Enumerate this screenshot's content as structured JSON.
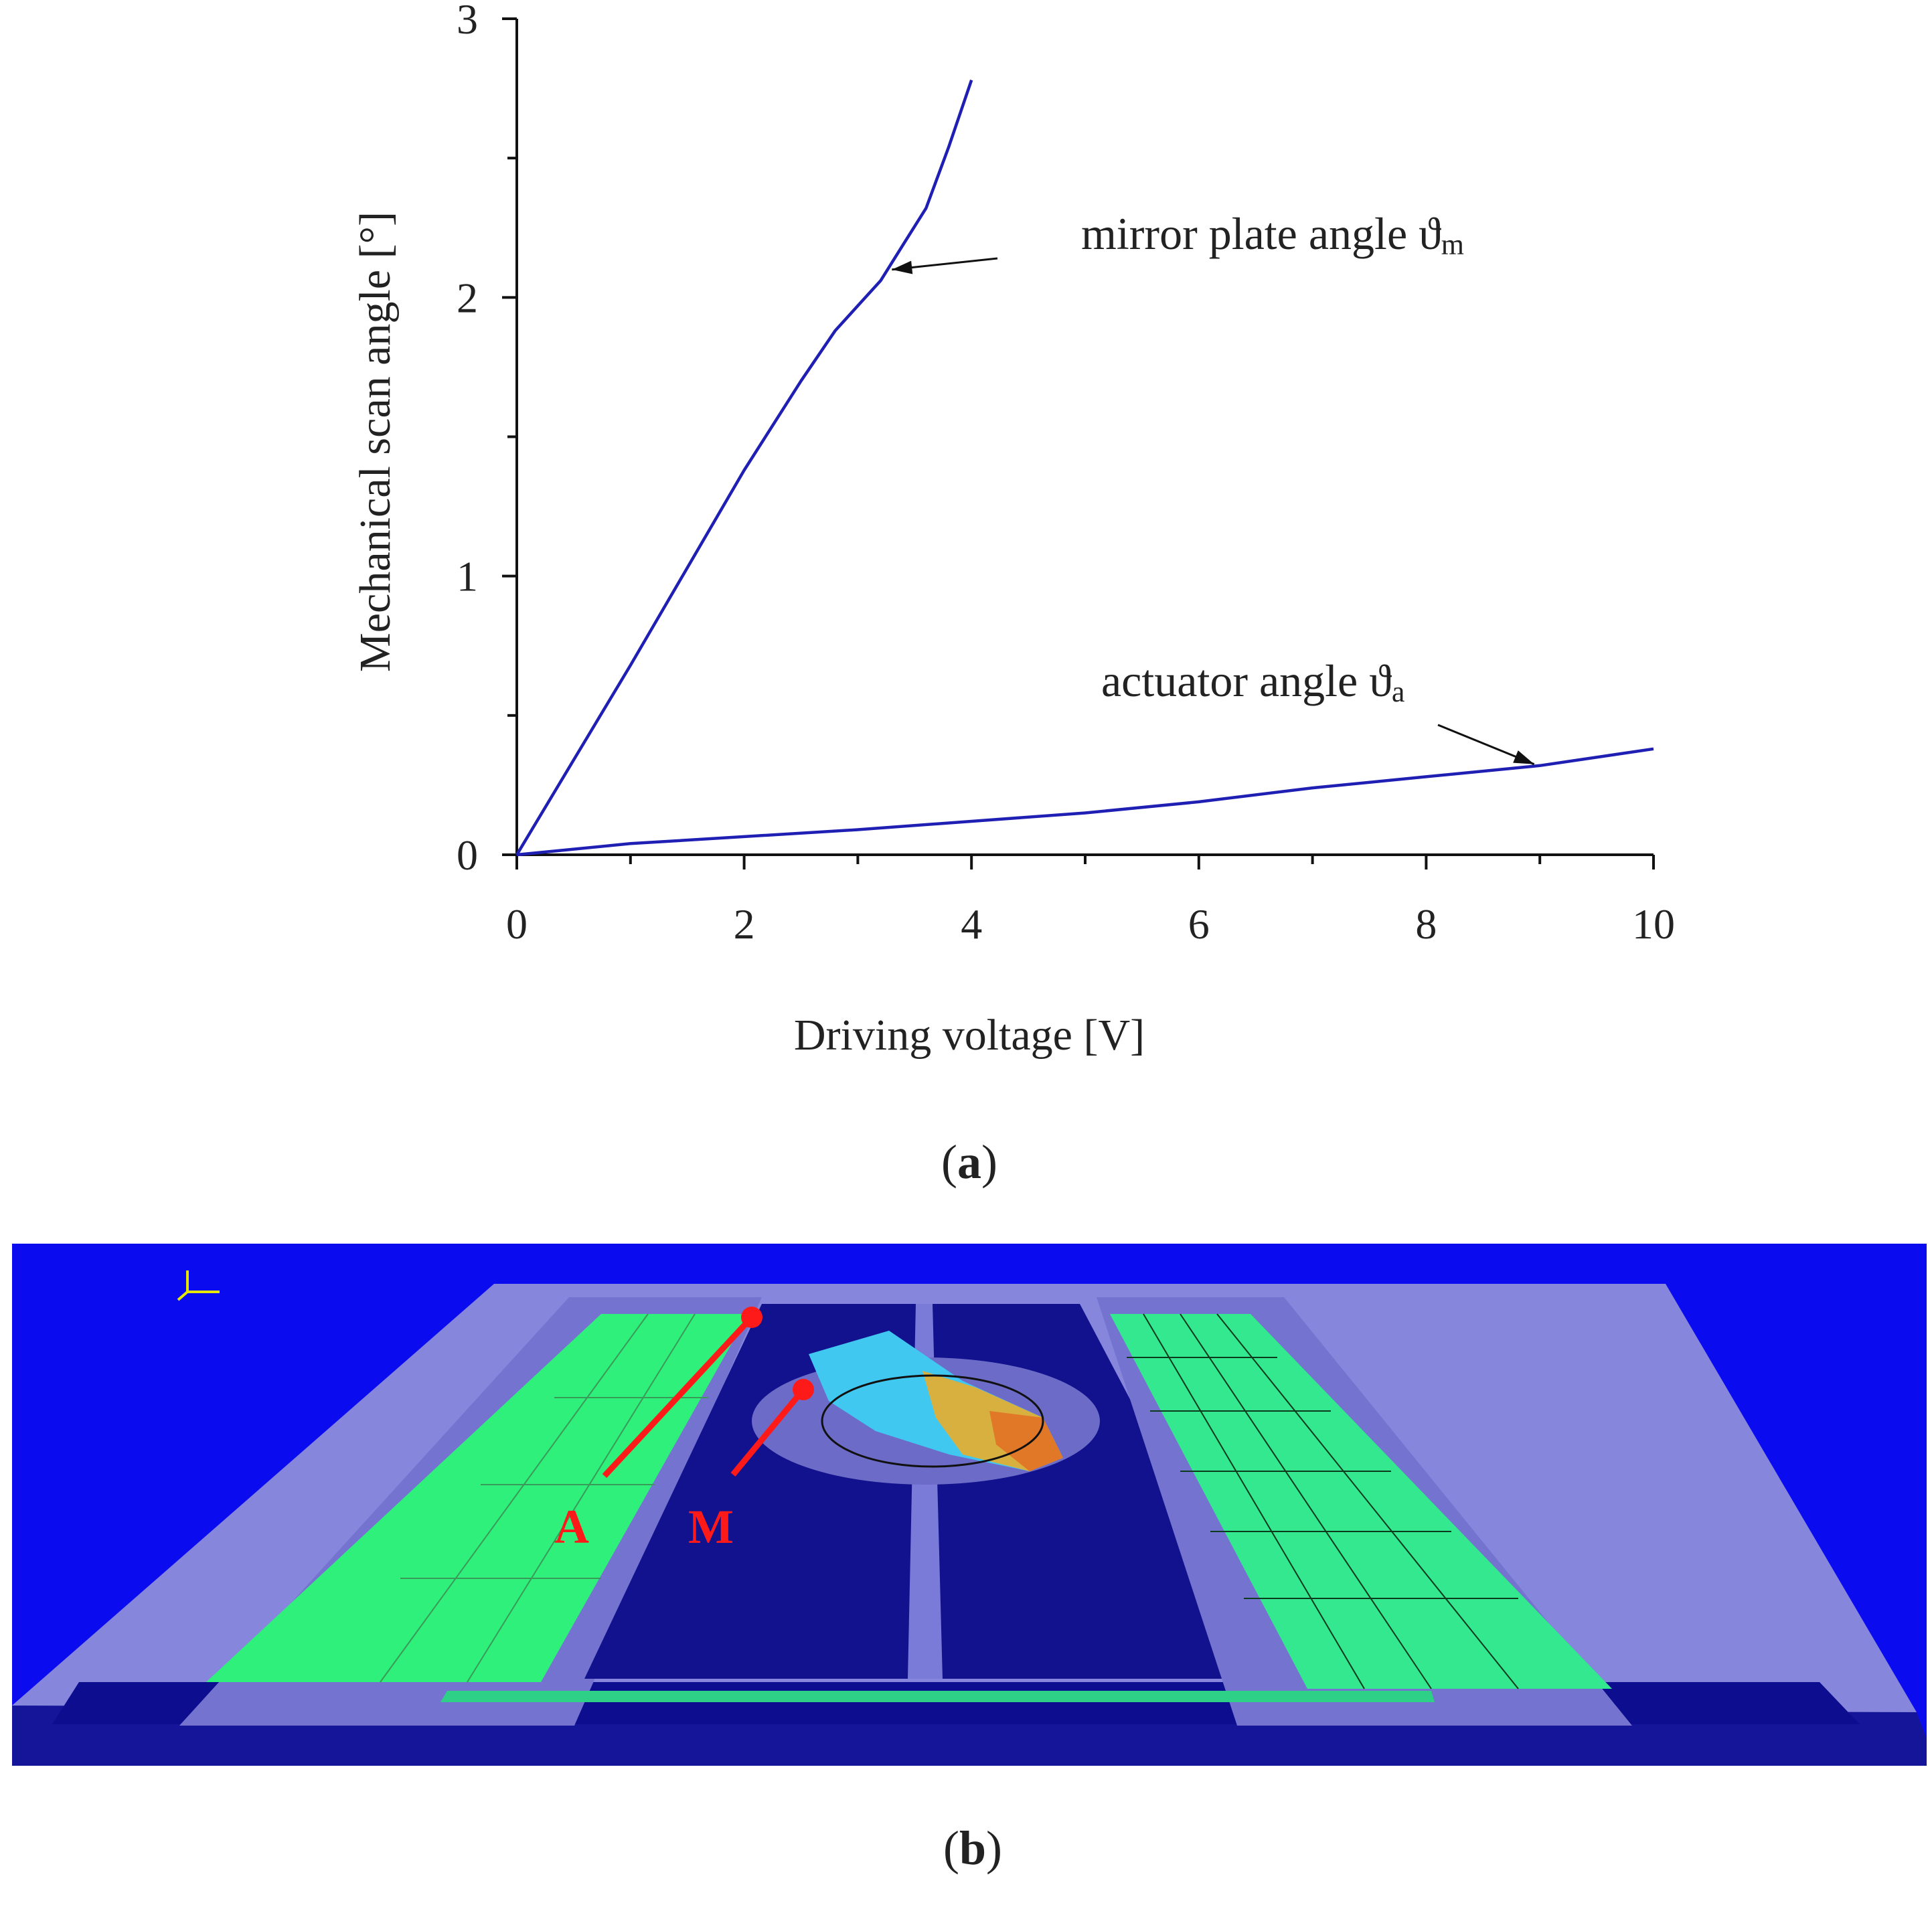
{
  "panels": {
    "a_label": "a",
    "b_label": "b"
  },
  "chart_data": {
    "type": "line",
    "xlabel": "Driving voltage [V]",
    "ylabel": "Mechanical scan angle [°]",
    "xlim": [
      0,
      10
    ],
    "ylim": [
      0,
      3
    ],
    "x_ticks": [
      0,
      2,
      4,
      6,
      8,
      10
    ],
    "y_ticks": [
      0,
      1,
      2,
      3
    ],
    "grid": false,
    "line_color": "#1f1fb4",
    "series": [
      {
        "name": "mirror plate angle ϑm",
        "label_main": "mirror plate angle ϑ",
        "label_sub": "m",
        "x": [
          0,
          0.5,
          1.0,
          1.5,
          2.0,
          2.5,
          2.8,
          3.0,
          3.2,
          3.4,
          3.6,
          3.8,
          4.0
        ],
        "y": [
          0,
          0.34,
          0.68,
          1.03,
          1.38,
          1.7,
          1.88,
          1.97,
          2.06,
          2.19,
          2.32,
          2.54,
          2.78
        ]
      },
      {
        "name": "actuator angle ϑa",
        "label_main": "actuator angle ϑ",
        "label_sub": "a",
        "x": [
          0,
          1,
          2,
          3,
          4,
          5,
          6,
          7,
          8,
          9,
          10
        ],
        "y": [
          0,
          0.04,
          0.065,
          0.09,
          0.12,
          0.15,
          0.19,
          0.24,
          0.28,
          0.32,
          0.38
        ]
      }
    ]
  },
  "figure_b": {
    "label_A": "A",
    "label_M": "M",
    "colors": {
      "background": "#0b0bf0",
      "chip": "#8a8ae8",
      "cavity": "#10108c",
      "actuator": "#2ef07a",
      "marker": "#ff1a1a"
    }
  }
}
